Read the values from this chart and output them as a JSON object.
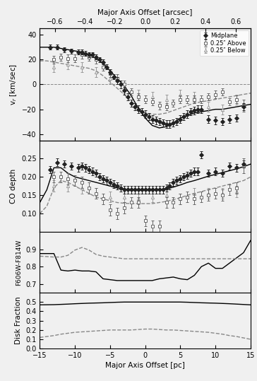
{
  "xlim_pc": [
    -15,
    15
  ],
  "arcsec_per_pc": 0.04667,
  "panel1_ylim": [
    -45,
    45
  ],
  "panel1_yticks": [
    -40,
    -20,
    0,
    20,
    40
  ],
  "panel1_ylabel": "v$_r$ [km/sec]",
  "panel2_ylim": [
    0.05,
    0.3
  ],
  "panel2_yticks": [
    0.1,
    0.15,
    0.2,
    0.25
  ],
  "panel2_ylabel": "CO depth",
  "panel3_ylim": [
    0.65,
    1.0
  ],
  "panel3_yticks": [
    0.7,
    0.8,
    0.9
  ],
  "panel3_ylabel": "F606W-F814W",
  "panel4_ylim": [
    0.0,
    0.6
  ],
  "panel4_yticks": [
    0.0,
    0.1,
    0.2,
    0.3,
    0.4,
    0.5
  ],
  "panel4_ylabel": "Disk Fraction",
  "xlabel_bottom": "Major Axis Offset [pc]",
  "xlabel_top": "Major Axis Offset [arcsec]",
  "vr_solid_x": [
    -15,
    -14,
    -13,
    -12,
    -11,
    -10,
    -9,
    -8,
    -7,
    -6,
    -5,
    -4,
    -3,
    -2,
    -1,
    0,
    1,
    2,
    3,
    4,
    5,
    6,
    7,
    8,
    9,
    10,
    11,
    12,
    13,
    14,
    15
  ],
  "vr_solid_y": [
    30,
    30,
    30,
    29,
    28,
    27,
    26,
    24,
    21,
    17,
    11,
    5,
    -1,
    -9,
    -19,
    -27,
    -33,
    -35,
    -34,
    -31,
    -27,
    -25,
    -23,
    -22,
    -21,
    -20,
    -20,
    -19,
    -18,
    -17,
    -16
  ],
  "vr_dashed_x": [
    -15,
    -14,
    -13,
    -12,
    -11,
    -10,
    -9,
    -8,
    -7,
    -6,
    -5,
    -4,
    -3,
    -2,
    -1,
    0,
    1,
    2,
    3,
    4,
    5,
    6,
    7,
    8,
    9,
    10,
    11,
    12,
    13,
    14,
    15
  ],
  "vr_dashed_y": [
    19,
    19,
    18,
    17,
    16,
    15,
    14,
    13,
    11,
    7,
    2,
    -3,
    -8,
    -14,
    -19,
    -23,
    -24,
    -24,
    -23,
    -21,
    -19,
    -17,
    -15,
    -14,
    -13,
    -12,
    -11,
    -10,
    -9,
    -8,
    -7
  ],
  "midplane_vr_x": [
    -13.5,
    -12.5,
    -11.5,
    -10.5,
    -9.5,
    -9.0,
    -8.5,
    -8.0,
    -7.5,
    -7.0,
    -6.5,
    -6.0,
    -5.5,
    -5.0,
    -4.5,
    -4.0,
    -3.5,
    -3.0,
    -2.5,
    -2.0,
    -1.5,
    -1.0,
    -0.5,
    0.0,
    0.5,
    1.0,
    1.5,
    2.0,
    2.5,
    3.0,
    3.5,
    4.0,
    4.5,
    5.0,
    5.5,
    6.0,
    6.5,
    7.0,
    7.5,
    8.0,
    9.0,
    10.0,
    11.0,
    12.0,
    13.0,
    14.0
  ],
  "midplane_vr_y": [
    30,
    30,
    28,
    27,
    26,
    26,
    25,
    24,
    24,
    22,
    20,
    18,
    14,
    10,
    6,
    3,
    0,
    -5,
    -10,
    -15,
    -18,
    -20,
    -22,
    -24,
    -26,
    -28,
    -29,
    -30,
    -31,
    -32,
    -32,
    -31,
    -30,
    -28,
    -26,
    -24,
    -22,
    -21,
    -20,
    -20,
    -28,
    -29,
    -30,
    -28,
    -27,
    -18
  ],
  "midplane_vr_yerr": [
    2,
    2,
    2,
    2,
    2,
    2,
    2,
    2,
    2,
    2,
    2,
    2,
    2,
    2,
    2,
    3,
    3,
    3,
    3,
    3,
    3,
    3,
    3,
    3,
    3,
    3,
    3,
    3,
    3,
    3,
    3,
    3,
    3,
    3,
    3,
    3,
    3,
    3,
    3,
    3,
    3,
    3,
    3,
    3,
    3,
    3
  ],
  "above_vr_x": [
    -13.0,
    -12.0,
    -11.0,
    -10.0,
    -9.0,
    -8.0,
    -7.0,
    -6.0,
    -5.0,
    -4.0,
    -3.0,
    -2.0,
    -1.0,
    0.0,
    1.0,
    2.0,
    3.0,
    4.0,
    5.0,
    6.0,
    7.0,
    8.0,
    9.0,
    10.0,
    11.0,
    12.0,
    13.0,
    14.0
  ],
  "above_vr_y": [
    20,
    22,
    21,
    21,
    24,
    22,
    20,
    14,
    9,
    5,
    0,
    -6,
    -10,
    -12,
    -14,
    -17,
    -18,
    -15,
    -12,
    -12,
    -12,
    -12,
    -10,
    -8,
    -6,
    -14,
    -12,
    -17
  ],
  "above_vr_yerr": [
    3,
    3,
    3,
    3,
    3,
    3,
    3,
    3,
    3,
    3,
    3,
    3,
    3,
    3,
    3,
    3,
    3,
    3,
    3,
    3,
    3,
    3,
    3,
    3,
    3,
    3,
    3,
    5
  ],
  "below_vr_x": [
    -13.0,
    -11.0,
    -9.0,
    -7.0,
    -5.0,
    -3.0,
    -1.0,
    1.0,
    3.0,
    5.0,
    7.0,
    9.0,
    11.0,
    13.0
  ],
  "below_vr_y": [
    14,
    16,
    14,
    10,
    5,
    -3,
    -8,
    -10,
    -12,
    -8,
    -10,
    -18,
    -20,
    -12
  ],
  "below_vr_yerr": [
    4,
    4,
    4,
    4,
    4,
    4,
    4,
    4,
    4,
    4,
    4,
    4,
    4,
    4
  ],
  "co_solid_x": [
    -15,
    -14,
    -13,
    -12,
    -11,
    -10,
    -9,
    -8,
    -7,
    -6,
    -5,
    -4,
    -3,
    -2,
    -1,
    0,
    1,
    2,
    3,
    4,
    5,
    6,
    7,
    8,
    9,
    10,
    11,
    12,
    13,
    14,
    15
  ],
  "co_solid_y": [
    0.13,
    0.165,
    0.225,
    0.225,
    0.21,
    0.2,
    0.195,
    0.19,
    0.185,
    0.18,
    0.175,
    0.17,
    0.165,
    0.163,
    0.163,
    0.163,
    0.163,
    0.165,
    0.167,
    0.172,
    0.178,
    0.185,
    0.19,
    0.196,
    0.202,
    0.207,
    0.212,
    0.217,
    0.222,
    0.228,
    0.235
  ],
  "co_dashed_x": [
    -15,
    -14,
    -13,
    -12,
    -11,
    -10,
    -9,
    -8,
    -7,
    -6,
    -5,
    -4,
    -3,
    -2,
    -1,
    0,
    1,
    2,
    3,
    4,
    5,
    6,
    7,
    8,
    9,
    10,
    11,
    12,
    13,
    14,
    15
  ],
  "co_dashed_y": [
    0.1,
    0.12,
    0.17,
    0.19,
    0.185,
    0.175,
    0.165,
    0.155,
    0.145,
    0.14,
    0.135,
    0.13,
    0.128,
    0.127,
    0.127,
    0.127,
    0.127,
    0.13,
    0.133,
    0.138,
    0.143,
    0.15,
    0.155,
    0.16,
    0.165,
    0.17,
    0.175,
    0.18,
    0.185,
    0.19,
    0.2
  ],
  "midplane_co_x": [
    -13.5,
    -12.5,
    -11.5,
    -10.5,
    -9.5,
    -9.0,
    -8.5,
    -8.0,
    -7.5,
    -7.0,
    -6.5,
    -6.0,
    -5.5,
    -5.0,
    -4.5,
    -4.0,
    -3.5,
    -3.0,
    -2.5,
    -2.0,
    -1.5,
    -1.0,
    -0.5,
    0.0,
    0.5,
    1.0,
    1.5,
    2.0,
    2.5,
    3.0,
    3.5,
    4.0,
    4.5,
    5.0,
    5.5,
    6.0,
    6.5,
    7.0,
    7.5,
    8.0,
    9.0,
    10.0,
    11.0,
    12.0,
    13.0,
    14.0
  ],
  "midplane_co_y": [
    0.22,
    0.24,
    0.235,
    0.23,
    0.225,
    0.23,
    0.225,
    0.22,
    0.215,
    0.21,
    0.2,
    0.195,
    0.19,
    0.185,
    0.18,
    0.175,
    0.17,
    0.165,
    0.165,
    0.165,
    0.165,
    0.165,
    0.165,
    0.165,
    0.165,
    0.165,
    0.165,
    0.165,
    0.165,
    0.17,
    0.175,
    0.185,
    0.19,
    0.195,
    0.2,
    0.205,
    0.21,
    0.215,
    0.215,
    0.26,
    0.21,
    0.215,
    0.21,
    0.23,
    0.225,
    0.235
  ],
  "midplane_co_yerr": [
    0.01,
    0.01,
    0.01,
    0.01,
    0.01,
    0.01,
    0.01,
    0.01,
    0.01,
    0.01,
    0.01,
    0.01,
    0.01,
    0.01,
    0.01,
    0.01,
    0.01,
    0.01,
    0.01,
    0.01,
    0.01,
    0.01,
    0.01,
    0.01,
    0.01,
    0.01,
    0.01,
    0.01,
    0.01,
    0.01,
    0.01,
    0.01,
    0.01,
    0.01,
    0.01,
    0.01,
    0.01,
    0.01,
    0.01,
    0.01,
    0.01,
    0.01,
    0.01,
    0.01,
    0.01,
    0.01
  ],
  "above_co_x": [
    -13.0,
    -12.0,
    -11.0,
    -10.0,
    -9.0,
    -8.0,
    -7.0,
    -6.0,
    -5.0,
    -4.0,
    -3.0,
    -2.0,
    -1.0,
    0.0,
    1.0,
    2.0,
    3.0,
    4.0,
    5.0,
    6.0,
    7.0,
    8.0,
    9.0,
    10.0,
    11.0,
    12.0,
    13.0,
    14.0
  ],
  "above_co_y": [
    0.2,
    0.2,
    0.195,
    0.19,
    0.185,
    0.17,
    0.155,
    0.14,
    0.11,
    0.1,
    0.115,
    0.13,
    0.13,
    0.08,
    0.065,
    0.065,
    0.13,
    0.13,
    0.14,
    0.145,
    0.14,
    0.145,
    0.15,
    0.155,
    0.15,
    0.165,
    0.17,
    0.23
  ],
  "above_co_yerr": [
    0.015,
    0.015,
    0.015,
    0.015,
    0.015,
    0.015,
    0.015,
    0.015,
    0.015,
    0.015,
    0.015,
    0.015,
    0.015,
    0.015,
    0.015,
    0.015,
    0.015,
    0.015,
    0.015,
    0.015,
    0.015,
    0.015,
    0.015,
    0.015,
    0.015,
    0.015,
    0.015,
    0.02
  ],
  "below_co_x": [
    -13.0,
    -11.0,
    -9.0,
    -7.0,
    -5.0,
    -3.0,
    -1.0,
    1.0,
    3.0,
    5.0,
    7.0,
    9.0,
    11.0,
    13.0
  ],
  "below_co_y": [
    0.175,
    0.175,
    0.17,
    0.155,
    0.145,
    0.145,
    0.14,
    0.145,
    0.15,
    0.14,
    0.155,
    0.155,
    0.155,
    0.16
  ],
  "below_co_yerr": [
    0.015,
    0.015,
    0.015,
    0.015,
    0.015,
    0.015,
    0.015,
    0.015,
    0.015,
    0.015,
    0.015,
    0.015,
    0.015,
    0.015
  ],
  "color_solid_x": [
    -15,
    -13,
    -12,
    -11,
    -10,
    -9,
    -8,
    -7,
    -6,
    -5,
    -4,
    -3,
    -2,
    -1,
    0,
    1,
    2,
    3,
    4,
    5,
    6,
    7,
    8,
    9,
    10,
    11,
    12,
    13,
    14,
    15
  ],
  "color_solid_y": [
    0.875,
    0.875,
    0.78,
    0.775,
    0.78,
    0.775,
    0.775,
    0.77,
    0.73,
    0.725,
    0.72,
    0.72,
    0.72,
    0.72,
    0.72,
    0.72,
    0.73,
    0.735,
    0.74,
    0.73,
    0.725,
    0.75,
    0.8,
    0.82,
    0.79,
    0.79,
    0.82,
    0.85,
    0.88,
    0.95
  ],
  "color_dashed_x": [
    -15,
    -13,
    -12,
    -11,
    -10,
    -9,
    -8,
    -7,
    -6,
    -5,
    -4,
    -3,
    -2,
    -1,
    0,
    1,
    2,
    3,
    4,
    5,
    6,
    7,
    8,
    9,
    10,
    11,
    12,
    13,
    14,
    15
  ],
  "color_dashed_y": [
    0.86,
    0.855,
    0.855,
    0.865,
    0.895,
    0.91,
    0.895,
    0.87,
    0.86,
    0.855,
    0.85,
    0.845,
    0.845,
    0.845,
    0.845,
    0.845,
    0.845,
    0.845,
    0.845,
    0.845,
    0.845,
    0.845,
    0.845,
    0.845,
    0.845,
    0.845,
    0.845,
    0.845,
    0.845,
    0.845
  ],
  "disk_solid_x": [
    -15,
    -13,
    -12,
    -11,
    -10,
    -9,
    -8,
    -7,
    -6,
    -5,
    -4,
    -3,
    -2,
    -1,
    0,
    1,
    2,
    3,
    4,
    5,
    6,
    7,
    8,
    9,
    10,
    11,
    12,
    13,
    14,
    15
  ],
  "disk_solid_y": [
    0.47,
    0.472,
    0.475,
    0.478,
    0.482,
    0.485,
    0.488,
    0.49,
    0.492,
    0.495,
    0.498,
    0.5,
    0.5,
    0.5,
    0.5,
    0.5,
    0.5,
    0.5,
    0.5,
    0.5,
    0.498,
    0.495,
    0.492,
    0.49,
    0.488,
    0.485,
    0.482,
    0.478,
    0.474,
    0.47
  ],
  "disk_dashed_x": [
    -15,
    -13,
    -12,
    -11,
    -10,
    -9,
    -8,
    -7,
    -6,
    -5,
    -4,
    -3,
    -2,
    -1,
    0,
    1,
    2,
    3,
    4,
    5,
    6,
    7,
    8,
    9,
    10,
    11,
    12,
    13,
    14,
    15
  ],
  "disk_dashed_y": [
    0.12,
    0.14,
    0.155,
    0.165,
    0.175,
    0.18,
    0.185,
    0.19,
    0.195,
    0.2,
    0.2,
    0.2,
    0.2,
    0.205,
    0.21,
    0.21,
    0.205,
    0.2,
    0.2,
    0.195,
    0.19,
    0.185,
    0.18,
    0.175,
    0.165,
    0.155,
    0.14,
    0.13,
    0.115,
    0.1
  ],
  "solid_color": "#000000",
  "dashed_color": "#888888",
  "midplane_color": "#222222",
  "above_color": "#666666",
  "below_color": "#999999",
  "bg_color": "#f0f0f0"
}
